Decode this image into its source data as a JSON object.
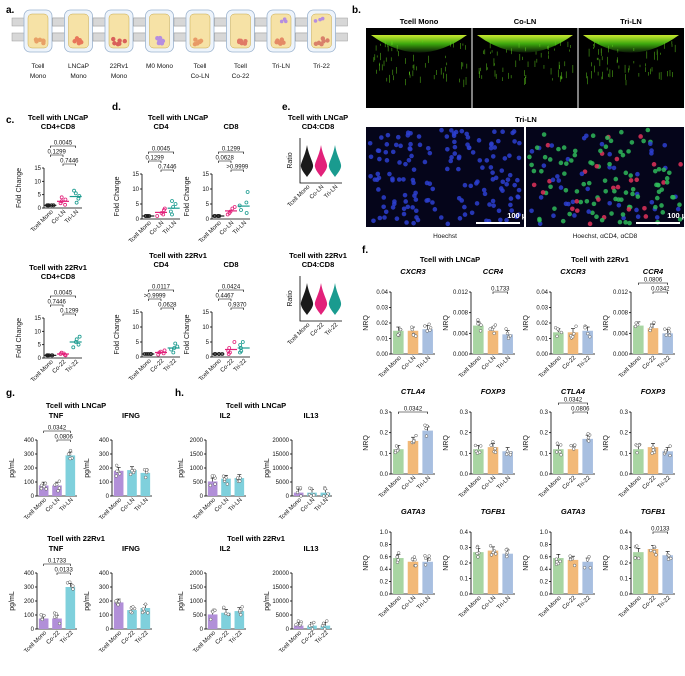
{
  "colors": {
    "mono": "#1a1a1a",
    "ln": "#e2217a",
    "tri": "#1a9b8f",
    "bar_mono": "#a8d5a2",
    "bar_co": "#f2b978",
    "bar_tri": "#a8bfe0",
    "purple": "#b18fd8",
    "teal": "#7fd0dc"
  },
  "panel_a": {
    "label": "a.",
    "items": [
      "Tcell\nMono",
      "LNCaP\nMono",
      "22Rv1\nMono",
      "M0 Mono",
      "Tcell\nCo-LN",
      "Tcell\nCo-22",
      "Tri-LN",
      "Tri-22"
    ]
  },
  "panel_b": {
    "label": "b.",
    "top_titles": [
      "Tcell Mono",
      "Co-LN",
      "Tri-LN"
    ],
    "bottom_title": "Tri-LN",
    "scale": "100 µm",
    "captions": [
      "Hoechst",
      "Hoechst, αCD4, αCD8"
    ]
  },
  "panel_c": {
    "label": "c.",
    "charts": [
      {
        "title1": "Tcell with LNCaP",
        "title2": "CD4+CD8",
        "ylabel": "Fold Change",
        "ylim": [
          0,
          15
        ],
        "ticks": [
          0,
          5,
          10,
          15
        ],
        "cats": [
          "Tcell Mono",
          "Co-LN",
          "Tri-LN"
        ],
        "means": [
          1,
          2.5,
          4.3
        ],
        "points": [
          [
            1,
            1,
            1,
            1,
            1
          ],
          [
            1.2,
            1.8,
            2.5,
            3.2,
            4
          ],
          [
            2,
            3.5,
            4.5,
            5.5,
            6.5
          ]
        ],
        "pvals": [
          {
            "a": 0,
            "b": 2,
            "t": "0.0045"
          },
          {
            "a": 1,
            "b": 2,
            "t": "0.7446"
          },
          {
            "a": 0,
            "b": 1,
            "t": "0.1299"
          }
        ]
      },
      {
        "title1": "Tcell with 22Rv1",
        "title2": "CD4+CD8",
        "ylabel": "Fold Change",
        "ylim": [
          0,
          15
        ],
        "ticks": [
          0,
          5,
          10,
          15
        ],
        "cats": [
          "Tcell Mono",
          "Co-22",
          "Tri-22"
        ],
        "means": [
          1,
          1.5,
          6
        ],
        "points": [
          [
            1,
            1,
            1,
            1,
            1
          ],
          [
            1,
            1.2,
            1.5,
            1.7,
            2
          ],
          [
            4,
            5,
            6,
            7,
            8
          ]
        ],
        "pvals": [
          {
            "a": 0,
            "b": 2,
            "t": "0.0045"
          },
          {
            "a": 1,
            "b": 2,
            "t": "0.1299"
          },
          {
            "a": 0,
            "b": 1,
            "t": "0.7446"
          }
        ]
      }
    ]
  },
  "panel_d": {
    "label": "d.",
    "group_titles": [
      "Tcell with LNCaP",
      "Tcell with 22Rv1"
    ],
    "charts": [
      {
        "title2": "CD4",
        "ylabel": "Fold Change",
        "ylim": [
          0,
          15
        ],
        "ticks": [
          0,
          5,
          10,
          15
        ],
        "cats": [
          "Tcell Mono",
          "Co-LN",
          "Tri-LN"
        ],
        "means": [
          1,
          2.2,
          3.6
        ],
        "points": [
          [
            1,
            1,
            1,
            1,
            1
          ],
          [
            1,
            1.5,
            2,
            3,
            3.5
          ],
          [
            1.5,
            2.5,
            4,
            5,
            6
          ]
        ],
        "pvals": [
          {
            "a": 0,
            "b": 2,
            "t": "0.0045"
          },
          {
            "a": 1,
            "b": 2,
            "t": "0.7446"
          },
          {
            "a": 0,
            "b": 1,
            "t": "0.1299"
          }
        ]
      },
      {
        "title2": "CD8",
        "ylabel": "Fold Change",
        "ylim": [
          0,
          15
        ],
        "ticks": [
          0,
          5,
          10,
          15
        ],
        "cats": [
          "Tcell Mono",
          "Co-LN",
          "Tri-LN"
        ],
        "means": [
          1,
          2.7,
          4.3
        ],
        "points": [
          [
            1,
            1,
            1,
            1,
            1
          ],
          [
            1.5,
            2,
            2.5,
            3.5,
            4
          ],
          [
            2,
            3,
            4.5,
            5.5,
            9
          ]
        ],
        "pvals": [
          {
            "a": 0,
            "b": 2,
            "t": "0.1299"
          },
          {
            "a": 1,
            "b": 2,
            "t": ">0.9999"
          },
          {
            "a": 0,
            "b": 1,
            "t": "0.0628"
          }
        ]
      },
      {
        "title2": "CD4",
        "ylabel": "Fold Change",
        "ylim": [
          0,
          15
        ],
        "ticks": [
          0,
          5,
          10,
          15
        ],
        "cats": [
          "Tcell Mono",
          "Co-22",
          "Tri-22"
        ],
        "means": [
          1,
          1.5,
          3
        ],
        "points": [
          [
            1,
            1,
            1,
            1,
            1
          ],
          [
            0.8,
            1.2,
            1.5,
            1.8,
            2.2
          ],
          [
            1.5,
            2.5,
            3,
            3.5,
            4.5
          ]
        ],
        "pvals": [
          {
            "a": 0,
            "b": 2,
            "t": "0.0117"
          },
          {
            "a": 1,
            "b": 2,
            "t": "0.0628"
          },
          {
            "a": 0,
            "b": 1,
            "t": ">0.9999"
          }
        ]
      },
      {
        "title2": "CD8",
        "ylabel": "Fold Change",
        "ylim": [
          0,
          15
        ],
        "ticks": [
          0,
          5,
          10,
          15
        ],
        "cats": [
          "Tcell Mono",
          "Co-22",
          "Tri-22"
        ],
        "means": [
          1,
          2.5,
          3
        ],
        "points": [
          [
            1,
            1,
            1,
            1,
            1
          ],
          [
            1,
            1.5,
            2,
            3,
            5
          ],
          [
            1.5,
            2,
            3,
            4,
            5
          ]
        ],
        "pvals": [
          {
            "a": 0,
            "b": 2,
            "t": "0.0424"
          },
          {
            "a": 1,
            "b": 2,
            "t": "0.9370"
          },
          {
            "a": 0,
            "b": 1,
            "t": "0.4467"
          }
        ]
      }
    ]
  },
  "panel_e": {
    "label": "e.",
    "charts": [
      {
        "title1": "Tcell with LNCaP",
        "title2": "CD4:CD8",
        "ylabel": "Ratio",
        "cats": [
          "Tcell Mono",
          "Co-LN",
          "Tri-LN"
        ]
      },
      {
        "title1": "Tcell with 22Rv1",
        "title2": "CD4:CD8",
        "ylabel": "Ratio",
        "cats": [
          "Tcell Mono",
          "Co-22",
          "Tri-22"
        ]
      }
    ]
  },
  "panel_f": {
    "label": "f.",
    "group_titles": [
      "Tcell with LNCaP",
      "Tcell with 22Rv1"
    ],
    "ylabel": "NRQ",
    "cats_ln": [
      "Tcell Mono",
      "Co-LN",
      "Tri-LN"
    ],
    "cats_22": [
      "Tcell Mono",
      "Co-22",
      "Tri-22"
    ],
    "charts": [
      {
        "gene": "CXCR3",
        "ylim": [
          0,
          0.04
        ],
        "ticks": [
          "0.00",
          "0.01",
          "0.02",
          "0.03",
          "0.04"
        ],
        "values": [
          0.015,
          0.015,
          0.016
        ],
        "pvals": []
      },
      {
        "gene": "CCR4",
        "ylim": [
          0,
          0.012
        ],
        "ticks": [
          "0.000",
          "0.004",
          "0.008",
          "0.012"
        ],
        "values": [
          0.0055,
          0.0045,
          0.0038
        ],
        "pvals": [
          {
            "a": 1,
            "b": 2,
            "t": "0.1733"
          }
        ]
      },
      {
        "gene": "CXCR3",
        "ylim": [
          0,
          0.04
        ],
        "ticks": [
          "0.00",
          "0.01",
          "0.02",
          "0.03",
          "0.04"
        ],
        "values": [
          0.014,
          0.014,
          0.015
        ],
        "pvals": []
      },
      {
        "gene": "CCR4",
        "ylim": [
          0,
          0.012
        ],
        "ticks": [
          "0.000",
          "0.004",
          "0.008",
          "0.012"
        ],
        "values": [
          0.0055,
          0.005,
          0.004
        ],
        "pvals": [
          {
            "a": 0,
            "b": 2,
            "t": "0.0806"
          },
          {
            "a": 1,
            "b": 2,
            "t": "0.0342"
          }
        ]
      },
      {
        "gene": "CTLA4",
        "ylim": [
          0,
          0.3
        ],
        "ticks": [
          "0.0",
          "0.1",
          "0.2",
          "0.3"
        ],
        "values": [
          0.12,
          0.16,
          0.21
        ],
        "pvals": [
          {
            "a": 0,
            "b": 2,
            "t": "0.0342"
          }
        ]
      },
      {
        "gene": "FOXP3",
        "ylim": [
          0,
          0.3
        ],
        "ticks": [
          "0.0",
          "0.1",
          "0.2",
          "0.3"
        ],
        "values": [
          0.12,
          0.13,
          0.11
        ],
        "pvals": []
      },
      {
        "gene": "CTLA4",
        "ylim": [
          0,
          0.3
        ],
        "ticks": [
          "0.0",
          "0.1",
          "0.2",
          "0.3"
        ],
        "values": [
          0.12,
          0.12,
          0.17
        ],
        "pvals": [
          {
            "a": 0,
            "b": 2,
            "t": "0.0342"
          },
          {
            "a": 1,
            "b": 2,
            "t": "0.0806"
          }
        ]
      },
      {
        "gene": "FOXP3",
        "ylim": [
          0,
          0.3
        ],
        "ticks": [
          "0.0",
          "0.1",
          "0.2",
          "0.3"
        ],
        "values": [
          0.12,
          0.13,
          0.11
        ],
        "pvals": []
      },
      {
        "gene": "GATA3",
        "ylim": [
          0,
          1.0
        ],
        "ticks": [
          "0.0",
          "0.2",
          "0.4",
          "0.6",
          "0.8",
          "1.0"
        ],
        "values": [
          0.58,
          0.52,
          0.52
        ],
        "pvals": []
      },
      {
        "gene": "TGFB1",
        "ylim": [
          0,
          0.4
        ],
        "ticks": [
          "0.0",
          "0.1",
          "0.2",
          "0.3",
          "0.4"
        ],
        "values": [
          0.27,
          0.28,
          0.26
        ],
        "pvals": []
      },
      {
        "gene": "GATA3",
        "ylim": [
          0,
          1.0
        ],
        "ticks": [
          "0.0",
          "0.2",
          "0.4",
          "0.6",
          "0.8",
          "1.0"
        ],
        "values": [
          0.58,
          0.55,
          0.52
        ],
        "pvals": []
      },
      {
        "gene": "TGFB1",
        "ylim": [
          0,
          0.4
        ],
        "ticks": [
          "0.0",
          "0.1",
          "0.2",
          "0.3",
          "0.4"
        ],
        "values": [
          0.27,
          0.29,
          0.25
        ],
        "pvals": [
          {
            "a": 1,
            "b": 2,
            "t": "0.0133"
          }
        ]
      }
    ]
  },
  "panel_g": {
    "label": "g.",
    "group_titles": [
      "Tcell with LNCaP",
      "Tcell with 22Rv1"
    ],
    "ylabel": "pg/mL",
    "charts": [
      {
        "name": "TNF",
        "ylim": [
          0,
          400
        ],
        "ticks": [
          "0",
          "100",
          "200",
          "300",
          "400"
        ],
        "cats": [
          "Tcell Mono",
          "Co-LN",
          "Tri-LN"
        ],
        "values": [
          75,
          75,
          290
        ],
        "colors": [
          "purple",
          "purple",
          "teal"
        ],
        "pvals": [
          {
            "a": 0,
            "b": 2,
            "t": "0.0342"
          },
          {
            "a": 1,
            "b": 2,
            "t": "0.0806"
          }
        ]
      },
      {
        "name": "IFNG",
        "ylim": [
          0,
          400
        ],
        "ticks": [
          "0",
          "100",
          "200",
          "300",
          "400"
        ],
        "cats": [
          "Tcell Mono",
          "Co-LN",
          "Tri-LN"
        ],
        "values": [
          180,
          185,
          165
        ],
        "colors": [
          "purple",
          "teal",
          "teal"
        ],
        "pvals": []
      },
      {
        "name": "TNF",
        "ylim": [
          0,
          400
        ],
        "ticks": [
          "0",
          "100",
          "200",
          "300",
          "400"
        ],
        "cats": [
          "Tcell Mono",
          "Co-22",
          "Tri-22"
        ],
        "values": [
          75,
          75,
          300
        ],
        "colors": [
          "purple",
          "purple",
          "teal"
        ],
        "pvals": [
          {
            "a": 0,
            "b": 2,
            "t": "0.1733"
          },
          {
            "a": 1,
            "b": 2,
            "t": "0.0133"
          }
        ]
      },
      {
        "name": "IFNG",
        "ylim": [
          0,
          400
        ],
        "ticks": [
          "0",
          "100",
          "200",
          "300",
          "400"
        ],
        "cats": [
          "Tcell Mono",
          "Co-22",
          "Tri-22"
        ],
        "values": [
          190,
          135,
          150
        ],
        "colors": [
          "purple",
          "teal",
          "teal"
        ],
        "pvals": []
      }
    ]
  },
  "panel_h": {
    "label": "h.",
    "group_titles": [
      "Tcell with LNCaP",
      "Tcell with 22Rv1"
    ],
    "ylabel": "pg/mL",
    "charts": [
      {
        "name": "IL2",
        "ylim": [
          0,
          2000
        ],
        "ticks": [
          "0",
          "500",
          "1000",
          "1500",
          "2000"
        ],
        "cats": [
          "Tcell Mono",
          "Co-LN",
          "Tri-LN"
        ],
        "values": [
          520,
          620,
          640
        ],
        "colors": [
          "purple",
          "teal",
          "teal"
        ]
      },
      {
        "name": "IL13",
        "ylim": [
          0,
          20000
        ],
        "ticks": [
          "0",
          "5000",
          "10000",
          "15000",
          "20000"
        ],
        "cats": [
          "Tcell Mono",
          "Co-LN",
          "Tri-LN"
        ],
        "values": [
          1200,
          1200,
          1200
        ],
        "colors": [
          "purple",
          "teal",
          "teal"
        ]
      },
      {
        "name": "IL2",
        "ylim": [
          0,
          2000
        ],
        "ticks": [
          "0",
          "500",
          "1000",
          "1500",
          "2000"
        ],
        "cats": [
          "Tcell Mono",
          "Co-22",
          "Tri-22"
        ],
        "values": [
          520,
          580,
          640
        ],
        "colors": [
          "purple",
          "teal",
          "teal"
        ]
      },
      {
        "name": "IL13",
        "ylim": [
          0,
          20000
        ],
        "ticks": [
          "0",
          "5000",
          "10000",
          "15000",
          "20000"
        ],
        "cats": [
          "Tcell Mono",
          "Co-22",
          "Tri-22"
        ],
        "values": [
          1200,
          1200,
          1200
        ],
        "colors": [
          "purple",
          "teal",
          "teal"
        ]
      }
    ]
  }
}
